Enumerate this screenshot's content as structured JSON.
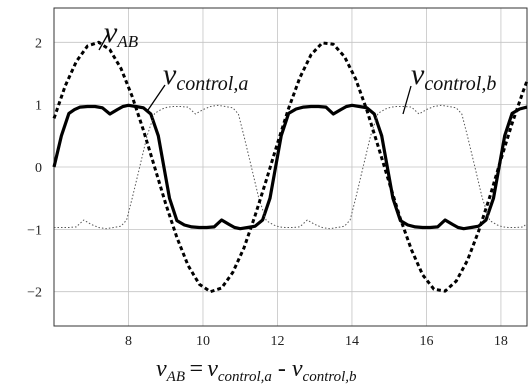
{
  "chart_data": {
    "type": "line",
    "xlabel": {
      "lhs_main": "v",
      "lhs_sub": "AB",
      "eq": "=",
      "t1_main": "v",
      "t1_sub": "control,a",
      "minus": "-",
      "t2_main": "v",
      "t2_sub": "control,b"
    },
    "xlim": [
      6.0,
      18.7
    ],
    "ylim": [
      -2.55,
      2.55
    ],
    "x_ticks": [
      "8",
      "10",
      "12",
      "14",
      "16",
      "18"
    ],
    "x_tick_values": [
      8,
      10,
      12,
      14,
      16,
      18
    ],
    "y_ticks": [
      "2",
      "1",
      "0",
      "−1",
      "−2"
    ],
    "y_tick_values": [
      2,
      1,
      0,
      -1,
      -2
    ],
    "grid": true,
    "series": [
      {
        "key": "vcontrol_a",
        "label_main": "v",
        "label_sub": "control,a",
        "style": "solid-thick",
        "color": "#000000",
        "x": [
          6.0,
          6.2,
          6.4,
          6.55,
          6.7,
          6.9,
          7.1,
          7.3,
          7.5,
          7.7,
          7.85,
          8.0,
          8.2,
          8.4,
          8.6,
          8.8,
          8.95,
          9.1,
          9.3,
          9.5,
          9.7,
          9.9,
          10.1,
          10.3,
          10.5,
          10.7,
          10.85,
          11.0,
          11.2,
          11.4,
          11.6,
          11.8,
          11.95,
          12.1,
          12.3,
          12.5,
          12.7,
          12.9,
          13.1,
          13.3,
          13.5,
          13.7,
          13.85,
          14.0,
          14.2,
          14.4,
          14.6,
          14.8,
          14.95,
          15.1,
          15.3,
          15.5,
          15.7,
          15.9,
          16.1,
          16.3,
          16.5,
          16.7,
          16.85,
          17.0,
          17.2,
          17.4,
          17.6,
          17.8,
          17.95,
          18.1,
          18.3,
          18.5,
          18.7
        ],
        "y": [
          0.0,
          0.5,
          0.86,
          0.92,
          0.96,
          0.97,
          0.97,
          0.95,
          0.85,
          0.92,
          0.97,
          0.99,
          0.97,
          0.95,
          0.85,
          0.5,
          0.0,
          -0.5,
          -0.86,
          -0.93,
          -0.96,
          -0.97,
          -0.97,
          -0.96,
          -0.85,
          -0.92,
          -0.97,
          -0.99,
          -0.97,
          -0.95,
          -0.85,
          -0.5,
          0.0,
          0.5,
          0.86,
          0.93,
          0.96,
          0.97,
          0.97,
          0.96,
          0.85,
          0.92,
          0.97,
          0.99,
          0.97,
          0.95,
          0.85,
          0.5,
          0.0,
          -0.5,
          -0.86,
          -0.93,
          -0.96,
          -0.97,
          -0.97,
          -0.96,
          -0.85,
          -0.92,
          -0.97,
          -0.99,
          -0.97,
          -0.95,
          -0.85,
          -0.5,
          0.0,
          0.5,
          0.86,
          0.93,
          0.96
        ]
      },
      {
        "key": "vcontrol_b",
        "label_main": "v",
        "label_sub": "control,b",
        "style": "dotted-thin",
        "color": "#555555",
        "x": [
          6.0,
          6.2,
          6.4,
          6.6,
          6.8,
          7.0,
          7.2,
          7.4,
          7.6,
          7.8,
          7.95,
          8.1,
          8.3,
          8.5,
          8.7,
          8.9,
          9.05,
          9.2,
          9.4,
          9.6,
          9.8,
          10.0,
          10.2,
          10.4,
          10.6,
          10.8,
          10.95,
          11.1,
          11.3,
          11.5,
          11.7,
          11.9,
          12.05,
          12.2,
          12.4,
          12.6,
          12.8,
          13.0,
          13.2,
          13.4,
          13.6,
          13.8,
          13.95,
          14.1,
          14.3,
          14.5,
          14.7,
          14.9,
          15.05,
          15.2,
          15.4,
          15.6,
          15.8,
          16.0,
          16.2,
          16.4,
          16.6,
          16.8,
          16.95,
          17.1,
          17.3,
          17.5,
          17.7,
          17.9,
          18.05,
          18.2,
          18.4,
          18.6,
          18.7
        ],
        "y": [
          -0.97,
          -0.97,
          -0.97,
          -0.96,
          -0.85,
          -0.92,
          -0.97,
          -0.99,
          -0.97,
          -0.95,
          -0.85,
          -0.5,
          0.0,
          0.5,
          0.86,
          0.93,
          0.96,
          0.97,
          0.97,
          0.96,
          0.85,
          0.92,
          0.97,
          0.99,
          0.97,
          0.95,
          0.85,
          0.5,
          0.0,
          -0.5,
          -0.86,
          -0.93,
          -0.96,
          -0.97,
          -0.97,
          -0.96,
          -0.85,
          -0.92,
          -0.97,
          -0.99,
          -0.97,
          -0.95,
          -0.85,
          -0.5,
          0.0,
          0.5,
          0.86,
          0.93,
          0.96,
          0.97,
          0.97,
          0.96,
          0.85,
          0.92,
          0.97,
          0.99,
          0.97,
          0.95,
          0.85,
          0.5,
          0.0,
          -0.5,
          -0.86,
          -0.93,
          -0.96,
          -0.97,
          -0.97,
          -0.96,
          -0.9
        ]
      },
      {
        "key": "vAB",
        "label_main": "v",
        "label_sub": "AB",
        "style": "dashed-thick",
        "color": "#000000",
        "x": [
          6.0,
          6.3,
          6.6,
          6.9,
          7.2,
          7.5,
          7.8,
          8.1,
          8.4,
          8.7,
          9.0,
          9.3,
          9.6,
          9.9,
          10.2,
          10.5,
          10.8,
          11.1,
          11.4,
          11.7,
          12.0,
          12.3,
          12.6,
          12.9,
          13.2,
          13.5,
          13.8,
          14.1,
          14.4,
          14.7,
          15.0,
          15.3,
          15.6,
          15.9,
          16.2,
          16.5,
          16.8,
          17.1,
          17.4,
          17.7,
          18.0,
          18.3,
          18.6,
          18.7
        ],
        "y": [
          0.78,
          1.3,
          1.69,
          1.94,
          2.0,
          1.88,
          1.58,
          1.13,
          0.59,
          0.0,
          -0.59,
          -1.13,
          -1.58,
          -1.88,
          -2.0,
          -1.94,
          -1.69,
          -1.3,
          -0.78,
          -0.21,
          0.38,
          0.94,
          1.43,
          1.8,
          1.99,
          1.97,
          1.77,
          1.41,
          0.91,
          0.34,
          -0.25,
          -0.83,
          -1.33,
          -1.73,
          -1.96,
          -1.99,
          -1.83,
          -1.5,
          -1.03,
          -0.48,
          0.12,
          0.7,
          1.22,
          1.38
        ]
      }
    ]
  }
}
